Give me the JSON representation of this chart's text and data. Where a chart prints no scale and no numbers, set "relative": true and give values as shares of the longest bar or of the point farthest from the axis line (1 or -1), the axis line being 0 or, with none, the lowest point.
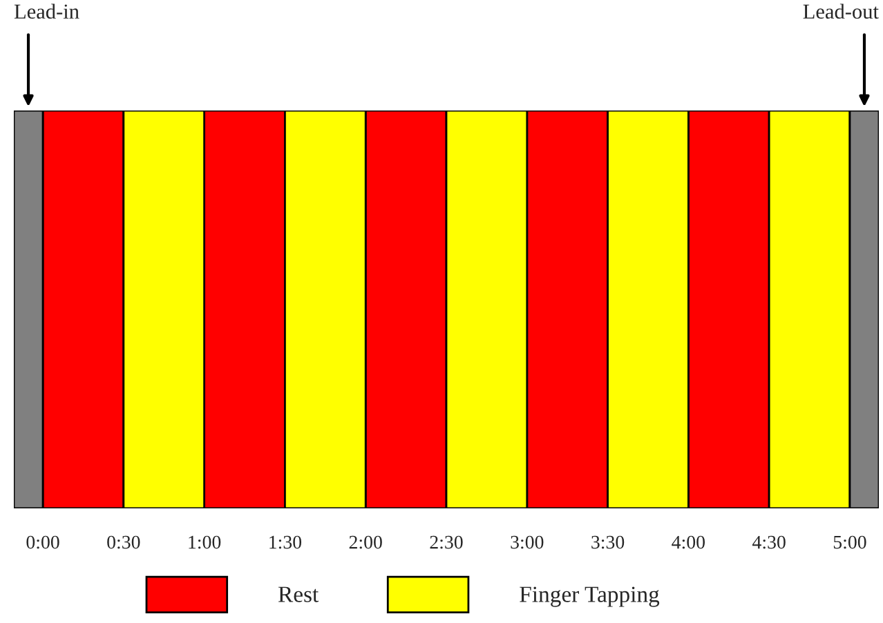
{
  "chart_data": {
    "type": "bar",
    "relative": true,
    "xlim": [
      -0.18,
      5.18
    ],
    "xticks": [
      {
        "value": 0,
        "label": "0:00"
      },
      {
        "value": 0.5,
        "label": "0:30"
      },
      {
        "value": 1,
        "label": "1:00"
      },
      {
        "value": 1.5,
        "label": "1:30"
      },
      {
        "value": 2,
        "label": "2:00"
      },
      {
        "value": 2.5,
        "label": "2:30"
      },
      {
        "value": 3,
        "label": "3:00"
      },
      {
        "value": 3.5,
        "label": "3:30"
      },
      {
        "value": 4,
        "label": "4:00"
      },
      {
        "value": 4.5,
        "label": "4:30"
      },
      {
        "value": 5,
        "label": "5:00"
      }
    ],
    "series": [
      {
        "name": "Rest",
        "color": "#ff0000",
        "x": [
          0.25,
          1.25,
          2.25,
          3.25,
          4.25
        ],
        "values": [
          1,
          1,
          1,
          1,
          1
        ]
      },
      {
        "name": "Finger Tapping",
        "color": "#ffff00",
        "x": [
          0.75,
          1.75,
          2.75,
          3.75,
          4.75
        ],
        "values": [
          1,
          1,
          1,
          1,
          1
        ]
      }
    ],
    "bands": [
      {
        "axis": "x",
        "from": -0.18,
        "to": 0,
        "label": "Lead-in",
        "color": "#808080"
      },
      {
        "axis": "x",
        "from": 5,
        "to": 5.18,
        "label": "Lead-out",
        "color": "#808080"
      }
    ],
    "legend": "bottom"
  }
}
